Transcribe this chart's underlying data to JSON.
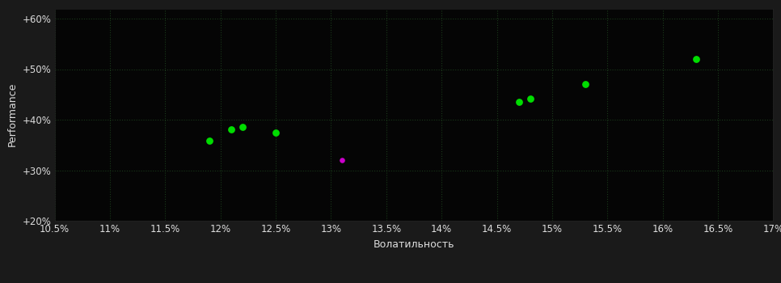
{
  "background_color": "#1a1a1a",
  "plot_bg_color": "#050505",
  "grid_color": "#1a3a1a",
  "text_color": "#dddddd",
  "xlabel": "Волатильность",
  "ylabel": "Performance",
  "xlim": [
    0.105,
    0.17
  ],
  "ylim": [
    0.2,
    0.62
  ],
  "xticks": [
    0.105,
    0.11,
    0.115,
    0.12,
    0.125,
    0.13,
    0.135,
    0.14,
    0.145,
    0.15,
    0.155,
    0.16,
    0.165,
    0.17
  ],
  "yticks": [
    0.2,
    0.3,
    0.4,
    0.5,
    0.6
  ],
  "ytick_labels": [
    "+20%",
    "+30%",
    "+40%",
    "+50%",
    "+60%"
  ],
  "xtick_labels": [
    "10.5%",
    "11%",
    "11.5%",
    "12%",
    "12.5%",
    "13%",
    "13.5%",
    "14%",
    "14.5%",
    "15%",
    "15.5%",
    "16%",
    "16.5%",
    "17%"
  ],
  "green_points": [
    [
      0.119,
      0.358
    ],
    [
      0.121,
      0.381
    ],
    [
      0.122,
      0.385
    ],
    [
      0.125,
      0.375
    ],
    [
      0.147,
      0.435
    ],
    [
      0.148,
      0.442
    ],
    [
      0.153,
      0.47
    ],
    [
      0.163,
      0.52
    ]
  ],
  "magenta_points": [
    [
      0.131,
      0.32
    ]
  ],
  "green_color": "#00dd00",
  "magenta_color": "#cc00cc",
  "marker_size": 28,
  "magenta_marker_size": 14,
  "font_size_ticks": 8.5,
  "font_size_axis": 9,
  "font_size_ylabel": 9
}
